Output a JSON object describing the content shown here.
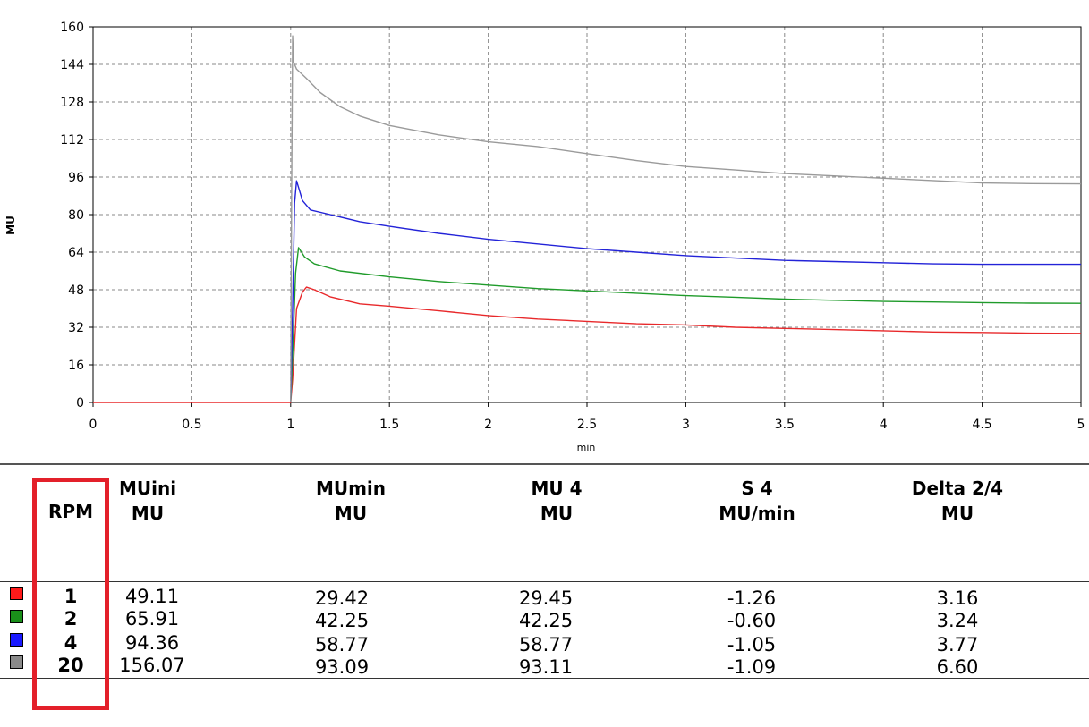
{
  "chart_data": {
    "type": "line",
    "ylabel": "MU",
    "xlabel": "min",
    "xlim": [
      0,
      5
    ],
    "ylim": [
      0,
      160
    ],
    "xticks": [
      "0",
      "0.5",
      "1",
      "1.5",
      "2",
      "2.5",
      "3",
      "3.5",
      "4",
      "4.5",
      "5"
    ],
    "yticks": [
      "0",
      "16",
      "32",
      "48",
      "64",
      "80",
      "96",
      "112",
      "128",
      "144",
      "160"
    ],
    "grid": true,
    "series": [
      {
        "color": "#e8292b",
        "points": [
          [
            0,
            0
          ],
          [
            0.3,
            0
          ],
          [
            1.0,
            0
          ],
          [
            1.01,
            10
          ],
          [
            1.03,
            40
          ],
          [
            1.06,
            47
          ],
          [
            1.08,
            49.1
          ],
          [
            1.12,
            48
          ],
          [
            1.2,
            45
          ],
          [
            1.35,
            42
          ],
          [
            1.5,
            41
          ],
          [
            1.75,
            39
          ],
          [
            2.0,
            37
          ],
          [
            2.25,
            35.5
          ],
          [
            2.5,
            34.5
          ],
          [
            2.75,
            33.5
          ],
          [
            3.0,
            33
          ],
          [
            3.25,
            32
          ],
          [
            3.5,
            31.5
          ],
          [
            3.75,
            31
          ],
          [
            4.0,
            30.5
          ],
          [
            4.25,
            30
          ],
          [
            4.5,
            29.8
          ],
          [
            4.75,
            29.5
          ],
          [
            5.0,
            29.4
          ]
        ]
      },
      {
        "color": "#1f9b2a",
        "points": [
          [
            1.0,
            0
          ],
          [
            1.01,
            20
          ],
          [
            1.025,
            55
          ],
          [
            1.04,
            65.9
          ],
          [
            1.07,
            62
          ],
          [
            1.12,
            59
          ],
          [
            1.25,
            56
          ],
          [
            1.5,
            53.5
          ],
          [
            1.75,
            51.5
          ],
          [
            2.0,
            50
          ],
          [
            2.25,
            48.5
          ],
          [
            2.5,
            47.5
          ],
          [
            2.75,
            46.5
          ],
          [
            3.0,
            45.5
          ],
          [
            3.25,
            44.8
          ],
          [
            3.5,
            44
          ],
          [
            3.75,
            43.5
          ],
          [
            4.0,
            43
          ],
          [
            4.25,
            42.8
          ],
          [
            4.5,
            42.5
          ],
          [
            4.75,
            42.3
          ],
          [
            5.0,
            42.2
          ]
        ]
      },
      {
        "color": "#2323d8",
        "points": [
          [
            1.0,
            0
          ],
          [
            1.01,
            40
          ],
          [
            1.02,
            85
          ],
          [
            1.03,
            94.4
          ],
          [
            1.06,
            86
          ],
          [
            1.1,
            82
          ],
          [
            1.2,
            80
          ],
          [
            1.35,
            77
          ],
          [
            1.5,
            75
          ],
          [
            1.75,
            72
          ],
          [
            2.0,
            69.5
          ],
          [
            2.25,
            67.5
          ],
          [
            2.5,
            65.5
          ],
          [
            2.75,
            64
          ],
          [
            3.0,
            62.5
          ],
          [
            3.25,
            61.5
          ],
          [
            3.5,
            60.5
          ],
          [
            3.75,
            60
          ],
          [
            4.0,
            59.5
          ],
          [
            4.25,
            59
          ],
          [
            4.5,
            58.8
          ],
          [
            4.75,
            58.8
          ],
          [
            5.0,
            58.8
          ]
        ]
      },
      {
        "color": "#9a9a9a",
        "points": [
          [
            1.0,
            0
          ],
          [
            1.005,
            90
          ],
          [
            1.01,
            156.1
          ],
          [
            1.015,
            145
          ],
          [
            1.03,
            142
          ],
          [
            1.08,
            138
          ],
          [
            1.15,
            132
          ],
          [
            1.25,
            126
          ],
          [
            1.35,
            122
          ],
          [
            1.5,
            118
          ],
          [
            1.75,
            114
          ],
          [
            2.0,
            111
          ],
          [
            2.25,
            109
          ],
          [
            2.5,
            106
          ],
          [
            2.75,
            103
          ],
          [
            3.0,
            100.5
          ],
          [
            3.25,
            99
          ],
          [
            3.5,
            97.5
          ],
          [
            3.75,
            96.5
          ],
          [
            4.0,
            95.5
          ],
          [
            4.25,
            94.5
          ],
          [
            4.5,
            93.5
          ],
          [
            4.75,
            93.2
          ],
          [
            5.0,
            93.1
          ]
        ]
      }
    ]
  },
  "table": {
    "headers": [
      {
        "line1": "RPM",
        "line2": ""
      },
      {
        "line1": "MUini",
        "line2": "MU"
      },
      {
        "line1": "MUmin",
        "line2": "MU"
      },
      {
        "line1": "MU 4",
        "line2": "MU"
      },
      {
        "line1": "S 4",
        "line2": "MU/min"
      },
      {
        "line1": "Delta 2/4",
        "line2": "MU"
      }
    ],
    "rows": [
      {
        "color": "#ff1a1a",
        "rpm": "1",
        "muini": "49.11",
        "mumin": "29.42",
        "mu4": "29.45",
        "s4": "-1.26",
        "delta": "3.16"
      },
      {
        "color": "#1a8f1a",
        "rpm": "2",
        "muini": "65.91",
        "mumin": "42.25",
        "mu4": "42.25",
        "s4": "-0.60",
        "delta": "3.24"
      },
      {
        "color": "#1a1aff",
        "rpm": "4",
        "muini": "94.36",
        "mumin": "58.77",
        "mu4": "58.77",
        "s4": "-1.05",
        "delta": "3.77"
      },
      {
        "color": "#8a8a8a",
        "rpm": "20",
        "muini": "156.07",
        "mumin": "93.09",
        "mu4": "93.11",
        "s4": "-1.09",
        "delta": "6.60"
      }
    ]
  }
}
